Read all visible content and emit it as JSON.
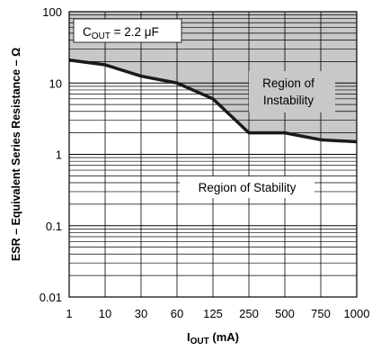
{
  "chart_data": {
    "type": "line",
    "title": "",
    "xlabel_main": "I",
    "xlabel_sub": "OUT",
    "xlabel_unit": " (mA)",
    "ylabel": "ESR – Equivalent Series Resistance – Ω",
    "y_scale": "log",
    "ylim": [
      0.01,
      100
    ],
    "y_ticks": [
      "100",
      "10",
      "1",
      "0.1",
      "0.01"
    ],
    "x_scale": "categorical-equal-spacing",
    "x_ticks": [
      "1",
      "10",
      "30",
      "60",
      "125",
      "250",
      "500",
      "750",
      "1000"
    ],
    "grid": true,
    "annotation": {
      "main": "C",
      "sub": "OUT",
      "rest": " = 2.2 μF"
    },
    "regions": [
      {
        "name": "unstable",
        "label_lines": [
          "Region of",
          "Instability"
        ],
        "fill": "#c8c8c8"
      },
      {
        "name": "stable",
        "label_lines": [
          "Region of Stability"
        ],
        "fill": "#ffffff"
      }
    ],
    "series": [
      {
        "line_color": "#1a1a1a",
        "x": [
          "1",
          "10",
          "30",
          "60",
          "125",
          "250",
          "500",
          "750",
          "1000"
        ],
        "y": [
          21,
          18,
          12.5,
          10,
          6,
          2,
          2,
          1.6,
          1.5
        ]
      }
    ]
  }
}
